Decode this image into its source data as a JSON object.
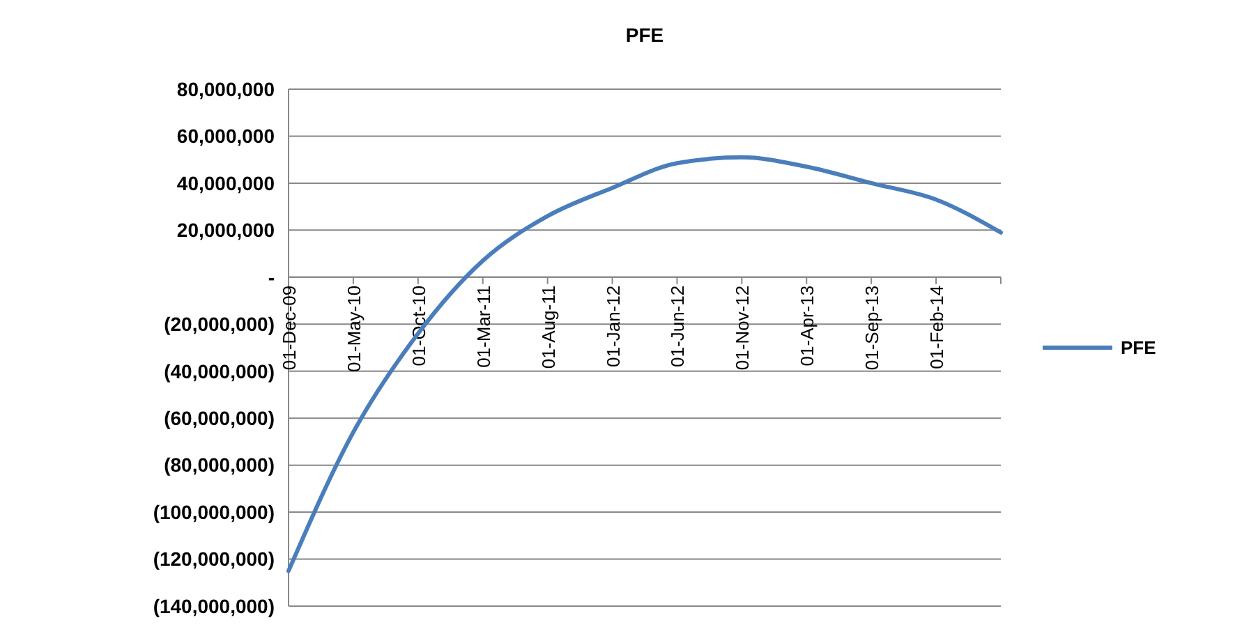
{
  "chart_data": {
    "type": "line",
    "title": "PFE",
    "categories": [
      "01-Dec-09",
      "01-May-10",
      "01-Oct-10",
      "01-Mar-11",
      "01-Aug-11",
      "01-Jan-12",
      "01-Jun-12",
      "01-Nov-12",
      "01-Apr-13",
      "01-Sep-13",
      "01-Feb-14",
      null
    ],
    "series": [
      {
        "name": "PFE",
        "color": "#4a7ebb",
        "values": [
          -125000000,
          -66000000,
          -24000000,
          7000000,
          26000000,
          38000000,
          48500000,
          51000000,
          47000000,
          40000000,
          33000000,
          19000000
        ]
      }
    ],
    "ylim": [
      -140000000,
      80000000
    ],
    "yticks": [
      {
        "value": -140000000,
        "label": "(140,000,000)"
      },
      {
        "value": -120000000,
        "label": "(120,000,000)"
      },
      {
        "value": -100000000,
        "label": "(100,000,000)"
      },
      {
        "value": -80000000,
        "label": "(80,000,000)"
      },
      {
        "value": -60000000,
        "label": "(60,000,000)"
      },
      {
        "value": -40000000,
        "label": "(40,000,000)"
      },
      {
        "value": -20000000,
        "label": "(20,000,000)"
      },
      {
        "value": 0,
        "label": "-"
      },
      {
        "value": 20000000,
        "label": "20,000,000"
      },
      {
        "value": 40000000,
        "label": "40,000,000"
      },
      {
        "value": 60000000,
        "label": "60,000,000"
      },
      {
        "value": 80000000,
        "label": "80,000,000"
      }
    ],
    "grid": "y",
    "legend": "right",
    "marker": "none",
    "line_style": "solid"
  }
}
